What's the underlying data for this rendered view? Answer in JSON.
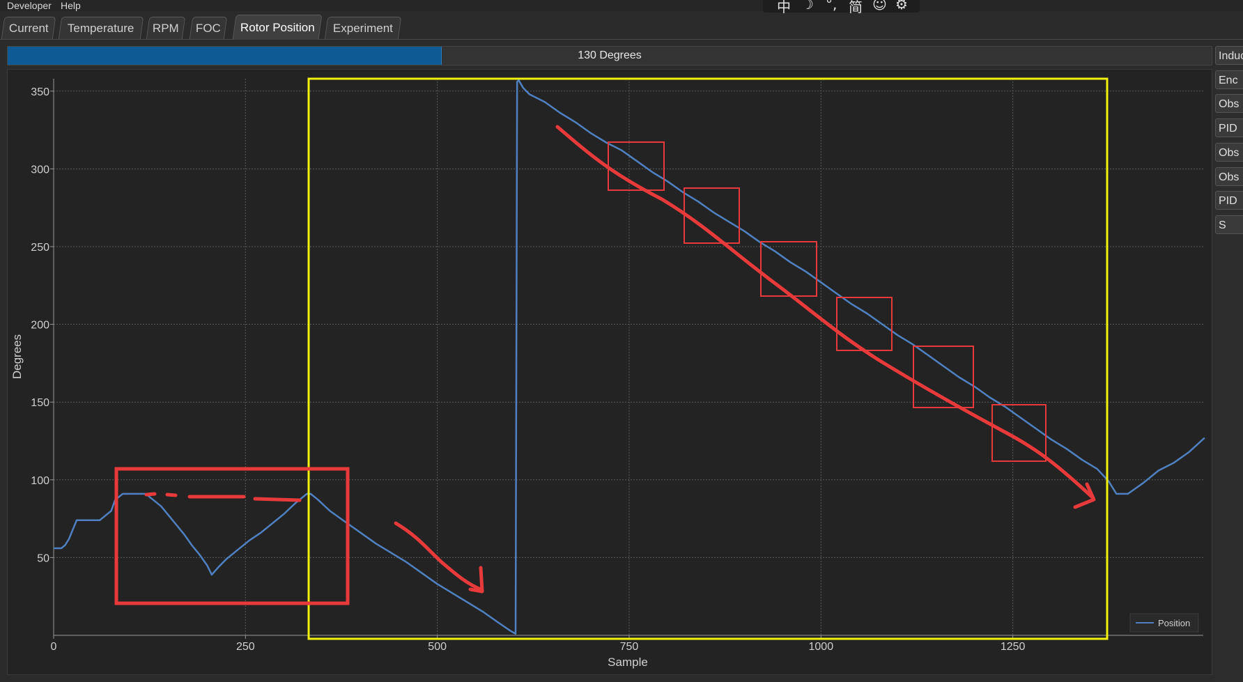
{
  "menubar": {
    "items": [
      "Developer",
      "Help"
    ]
  },
  "ime_toolbar": {
    "icons": [
      "中",
      "☽",
      "°,",
      "简",
      "☺",
      "⚙"
    ]
  },
  "tabs": [
    {
      "label": "Current",
      "active": false
    },
    {
      "label": "Temperature",
      "active": false
    },
    {
      "label": "RPM",
      "active": false
    },
    {
      "label": "FOC",
      "active": false
    },
    {
      "label": "Rotor Position",
      "active": true
    },
    {
      "label": "Experiment",
      "active": false
    }
  ],
  "progress": {
    "label": "130 Degrees",
    "fraction": 0.36
  },
  "side_buttons": [
    "Induc",
    "Enc",
    "Obs",
    "PID",
    "Obs",
    "Obs",
    "PID",
    "S"
  ],
  "colors": {
    "series": "#4f81c2",
    "annotation_red": "#e83a3a",
    "annotation_yellow": "#f2f20e",
    "progress": "#0e5a94"
  },
  "chart_data": {
    "type": "line",
    "xlabel": "Sample",
    "ylabel": "Degrees",
    "xlim": [
      0,
      1500
    ],
    "ylim": [
      0,
      360
    ],
    "x_ticks": [
      0,
      250,
      500,
      750,
      1000,
      1250
    ],
    "y_ticks": [
      50,
      100,
      150,
      200,
      250,
      300,
      350
    ],
    "grid": true,
    "legend": {
      "entries": [
        "Position"
      ],
      "placement": "bottom-right"
    },
    "series": [
      {
        "name": "Position",
        "color": "#4f81c2",
        "x": [
          0,
          10,
          15,
          20,
          25,
          30,
          40,
          60,
          75,
          80,
          90,
          100,
          110,
          120,
          130,
          140,
          150,
          160,
          170,
          180,
          190,
          200,
          206,
          215,
          225,
          240,
          255,
          270,
          285,
          300,
          315,
          330,
          335,
          345,
          360,
          380,
          400,
          420,
          440,
          460,
          480,
          500,
          520,
          540,
          560,
          580,
          595,
          602,
          604,
          606,
          612,
          620,
          640,
          660,
          680,
          700,
          720,
          740,
          760,
          780,
          800,
          820,
          840,
          860,
          880,
          900,
          920,
          940,
          960,
          980,
          1000,
          1020,
          1040,
          1060,
          1080,
          1100,
          1120,
          1140,
          1160,
          1180,
          1200,
          1220,
          1240,
          1260,
          1280,
          1300,
          1320,
          1340,
          1360,
          1375,
          1385,
          1400,
          1420,
          1440,
          1460,
          1480,
          1500
        ],
        "y": [
          56,
          56,
          58,
          62,
          68,
          74,
          74,
          74,
          80,
          87,
          91,
          91,
          91,
          91,
          87,
          83,
          77,
          71,
          65,
          58,
          52,
          45,
          39,
          44,
          49,
          55,
          61,
          66,
          72,
          78,
          85,
          91,
          91,
          87,
          80,
          73,
          66,
          59,
          53,
          47,
          40,
          33,
          27,
          21,
          15,
          8,
          3,
          1,
          356,
          357,
          352,
          348,
          343,
          336,
          330,
          323,
          317,
          312,
          305,
          298,
          292,
          285,
          279,
          272,
          266,
          260,
          253,
          247,
          240,
          234,
          227,
          220,
          213,
          207,
          200,
          193,
          187,
          180,
          173,
          166,
          160,
          153,
          147,
          140,
          133,
          126,
          120,
          113,
          107,
          99,
          91,
          91,
          98,
          106,
          111,
          118,
          127
        ]
      }
    ]
  }
}
